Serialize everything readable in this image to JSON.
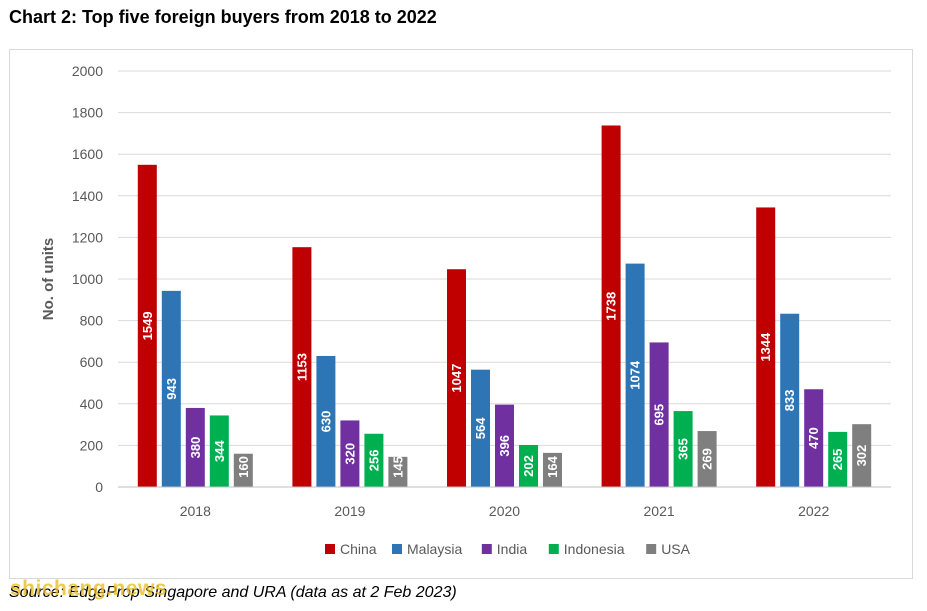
{
  "page": {
    "title": "Chart 2: Top five foreign buyers from 2018 to 2022",
    "source": "Source: EdgeProp Singapore and URA (data as at 2 Feb 2023)",
    "watermark": "shichang.news"
  },
  "chart_data": {
    "type": "bar",
    "title": "Chart 2: Top five foreign buyers from 2018 to 2022",
    "xlabel": "",
    "ylabel": "No. of units",
    "categories": [
      "2018",
      "2019",
      "2020",
      "2021",
      "2022"
    ],
    "ylim": [
      0,
      2000
    ],
    "yticks": [
      0,
      200,
      400,
      600,
      800,
      1000,
      1200,
      1400,
      1600,
      1800,
      2000
    ],
    "grid": true,
    "legend_position": "bottom",
    "series": [
      {
        "name": "China",
        "color": "#c00000",
        "values": [
          1549,
          1153,
          1047,
          1738,
          1344
        ]
      },
      {
        "name": "Malaysia",
        "color": "#2e75b6",
        "values": [
          943,
          630,
          564,
          1074,
          833
        ]
      },
      {
        "name": "India",
        "color": "#7030a0",
        "values": [
          380,
          320,
          396,
          695,
          470
        ]
      },
      {
        "name": "Indonesia",
        "color": "#00b050",
        "values": [
          344,
          256,
          202,
          365,
          265
        ]
      },
      {
        "name": "USA",
        "color": "#7f7f7f",
        "values": [
          160,
          145,
          164,
          269,
          302
        ]
      }
    ]
  }
}
